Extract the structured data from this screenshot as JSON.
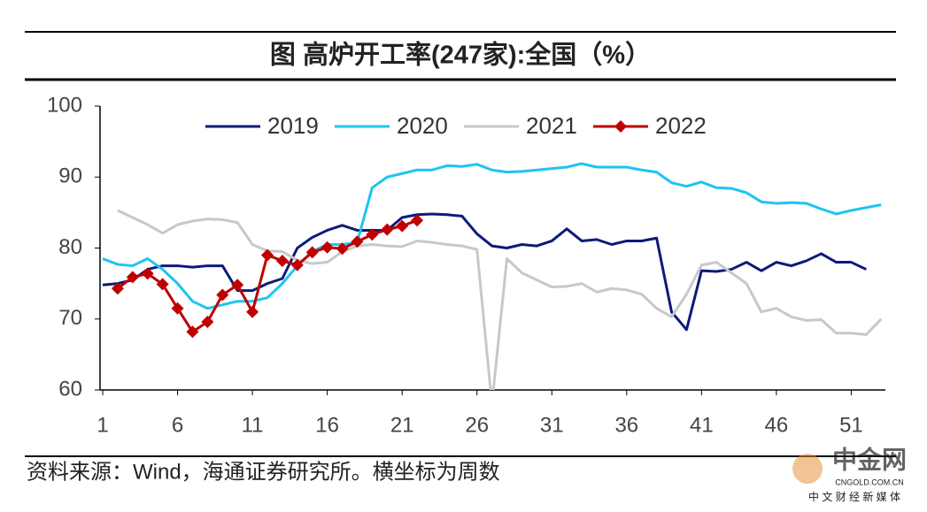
{
  "chart_data": {
    "type": "line",
    "title": "图 高炉开工率(247家):全国（%）",
    "source": "资料来源：Wind，海通证券研究所。横坐标为周数",
    "watermark": [
      "中金网",
      "CNGOLD.COM.CN",
      "中 文 财 经 新 媒 体"
    ],
    "x": [
      1,
      2,
      3,
      4,
      5,
      6,
      7,
      8,
      9,
      10,
      11,
      12,
      13,
      14,
      15,
      16,
      17,
      18,
      19,
      20,
      21,
      22,
      23,
      24,
      25,
      26,
      27,
      28,
      29,
      30,
      31,
      32,
      33,
      34,
      35,
      36,
      37,
      38,
      39,
      40,
      41,
      42,
      43,
      44,
      45,
      46,
      47,
      48,
      49,
      50,
      51,
      52,
      53
    ],
    "xlim": [
      1,
      53.4
    ],
    "xticks": [
      1,
      6,
      11,
      16,
      21,
      26,
      31,
      36,
      41,
      46,
      51
    ],
    "ylim": [
      60,
      100
    ],
    "yticks": [
      60,
      70,
      80,
      90,
      100
    ],
    "legend": "top",
    "series": [
      {
        "name": "2019",
        "color": "#0d1a7a",
        "marker": "none",
        "values": [
          74.8,
          75,
          75.5,
          77,
          77.5,
          77.5,
          77.3,
          77.5,
          77.5,
          74,
          74,
          75,
          75.7,
          80,
          81.5,
          82.5,
          83.2,
          82.5,
          82.5,
          82.5,
          84.3,
          84.7,
          84.8,
          84.7,
          84.5,
          82,
          80.3,
          80,
          80.5,
          80.3,
          81,
          82.7,
          81,
          81.2,
          80.5,
          81,
          81,
          81.4,
          71,
          68.5,
          76.8,
          76.7,
          77,
          78,
          76.8,
          78,
          77.5,
          78.2,
          79.2,
          78,
          78,
          77,
          null
        ]
      },
      {
        "name": "2020",
        "color": "#1ec4f0",
        "marker": "none",
        "values": [
          78.5,
          77.7,
          77.5,
          78.5,
          77,
          75,
          72.5,
          71.5,
          72,
          72.5,
          72.5,
          73,
          75,
          77.5,
          79.5,
          80.5,
          80.5,
          80.8,
          88.5,
          90,
          90.5,
          91,
          91,
          91.6,
          91.5,
          91.8,
          91,
          90.7,
          90.8,
          91,
          91.2,
          91.4,
          91.9,
          91.4,
          91.4,
          91.4,
          91,
          90.7,
          89.2,
          88.7,
          89.3,
          88.5,
          88.4,
          87.8,
          86.5,
          86.3,
          86.4,
          86.3,
          85.5,
          84.8,
          85.3,
          85.7,
          86.1
        ]
      },
      {
        "name": "2021",
        "color": "#c8c8c8",
        "marker": "none",
        "values": [
          null,
          85.3,
          84.3,
          83.3,
          82.1,
          83.3,
          83.8,
          84.1,
          84,
          83.6,
          80.5,
          79.6,
          79.5,
          78.3,
          77.8,
          78,
          79.5,
          80.3,
          80.5,
          80.3,
          80.2,
          81,
          80.8,
          80.5,
          80.3,
          79.8,
          58,
          78.5,
          76.5,
          75.5,
          74.5,
          74.6,
          75,
          73.8,
          74.3,
          74.1,
          73.5,
          71.5,
          70.3,
          73.5,
          77.6,
          78,
          76.5,
          75,
          71,
          71.5,
          70.3,
          69.8,
          69.9,
          68,
          68,
          67.8,
          70
        ]
      },
      {
        "name": "2022",
        "color": "#c00000",
        "marker": "diamond",
        "values": [
          null,
          74.3,
          75.9,
          76.4,
          74.9,
          71.5,
          68.2,
          69.6,
          73.4,
          74.8,
          71,
          79,
          78.2,
          77.6,
          79.4,
          80.1,
          79.9,
          80.9,
          81.9,
          82.6,
          83.1,
          83.9,
          null,
          null,
          null,
          null,
          null,
          null,
          null,
          null,
          null,
          null,
          null,
          null,
          null,
          null,
          null,
          null,
          null,
          null,
          null,
          null,
          null,
          null,
          null,
          null,
          null,
          null,
          null,
          null,
          null,
          null,
          null
        ]
      }
    ]
  }
}
